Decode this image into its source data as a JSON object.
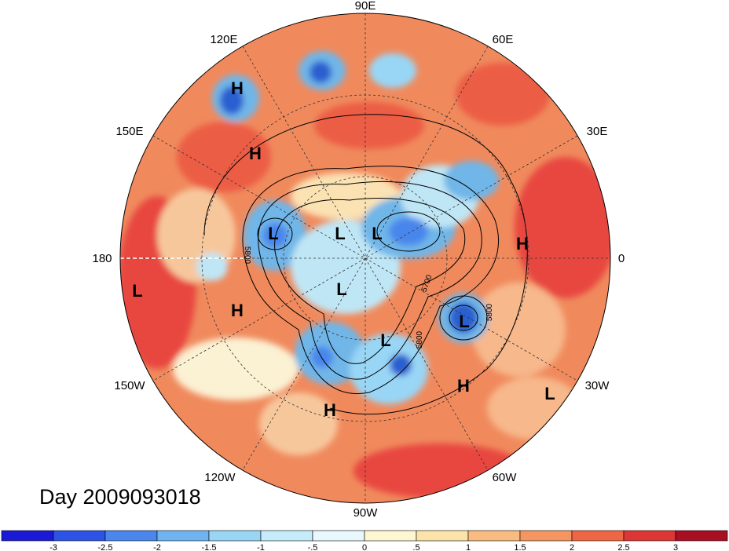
{
  "map": {
    "projection": "north polar stereographic",
    "colors": {
      "background_warm": "#f08a5d",
      "warm_light": "#f7b88b",
      "warm_strong": "#e8473f",
      "cool_light": "#bfe6f5",
      "cool_mid": "#6fb6e8",
      "cool_strong": "#2a5fd0",
      "neutral": "#fbf1d3"
    },
    "longitude_labels": [
      {
        "text": "90E"
      },
      {
        "text": "120E"
      },
      {
        "text": "60E"
      },
      {
        "text": "150E"
      },
      {
        "text": "30E"
      },
      {
        "text": "180"
      },
      {
        "text": "0"
      },
      {
        "text": "150W"
      },
      {
        "text": "30W"
      },
      {
        "text": "120W"
      },
      {
        "text": "60W"
      },
      {
        "text": "90W"
      }
    ],
    "pressure_centers": [
      {
        "text": "H"
      },
      {
        "text": "H"
      },
      {
        "text": "L"
      },
      {
        "text": "L"
      },
      {
        "text": "L"
      },
      {
        "text": "H"
      },
      {
        "text": "L"
      },
      {
        "text": "L"
      },
      {
        "text": "H"
      },
      {
        "text": "L"
      },
      {
        "text": "L"
      },
      {
        "text": "H"
      },
      {
        "text": "L"
      },
      {
        "text": "H"
      }
    ],
    "contour_labels": [
      {
        "text": "5800"
      },
      {
        "text": "5700"
      },
      {
        "text": "5800"
      },
      {
        "text": "5800"
      }
    ]
  },
  "caption": {
    "day_text": "Day 2009093018"
  },
  "colorbar": {
    "colors": [
      "#1a1ad6",
      "#2d52e6",
      "#4a86ec",
      "#6fb3f0",
      "#99d6f5",
      "#c4ecfa",
      "#e8f8fd",
      "#fdf6d2",
      "#fce3a9",
      "#f9bb80",
      "#f59660",
      "#ef6644",
      "#dd3634",
      "#a80f23"
    ],
    "tick_labels": [
      "-3",
      "-2.5",
      "-2",
      "-1.5",
      "-1",
      "-.5",
      "0",
      ".5",
      "1",
      "1.5",
      "2",
      "2.5",
      "3"
    ]
  }
}
